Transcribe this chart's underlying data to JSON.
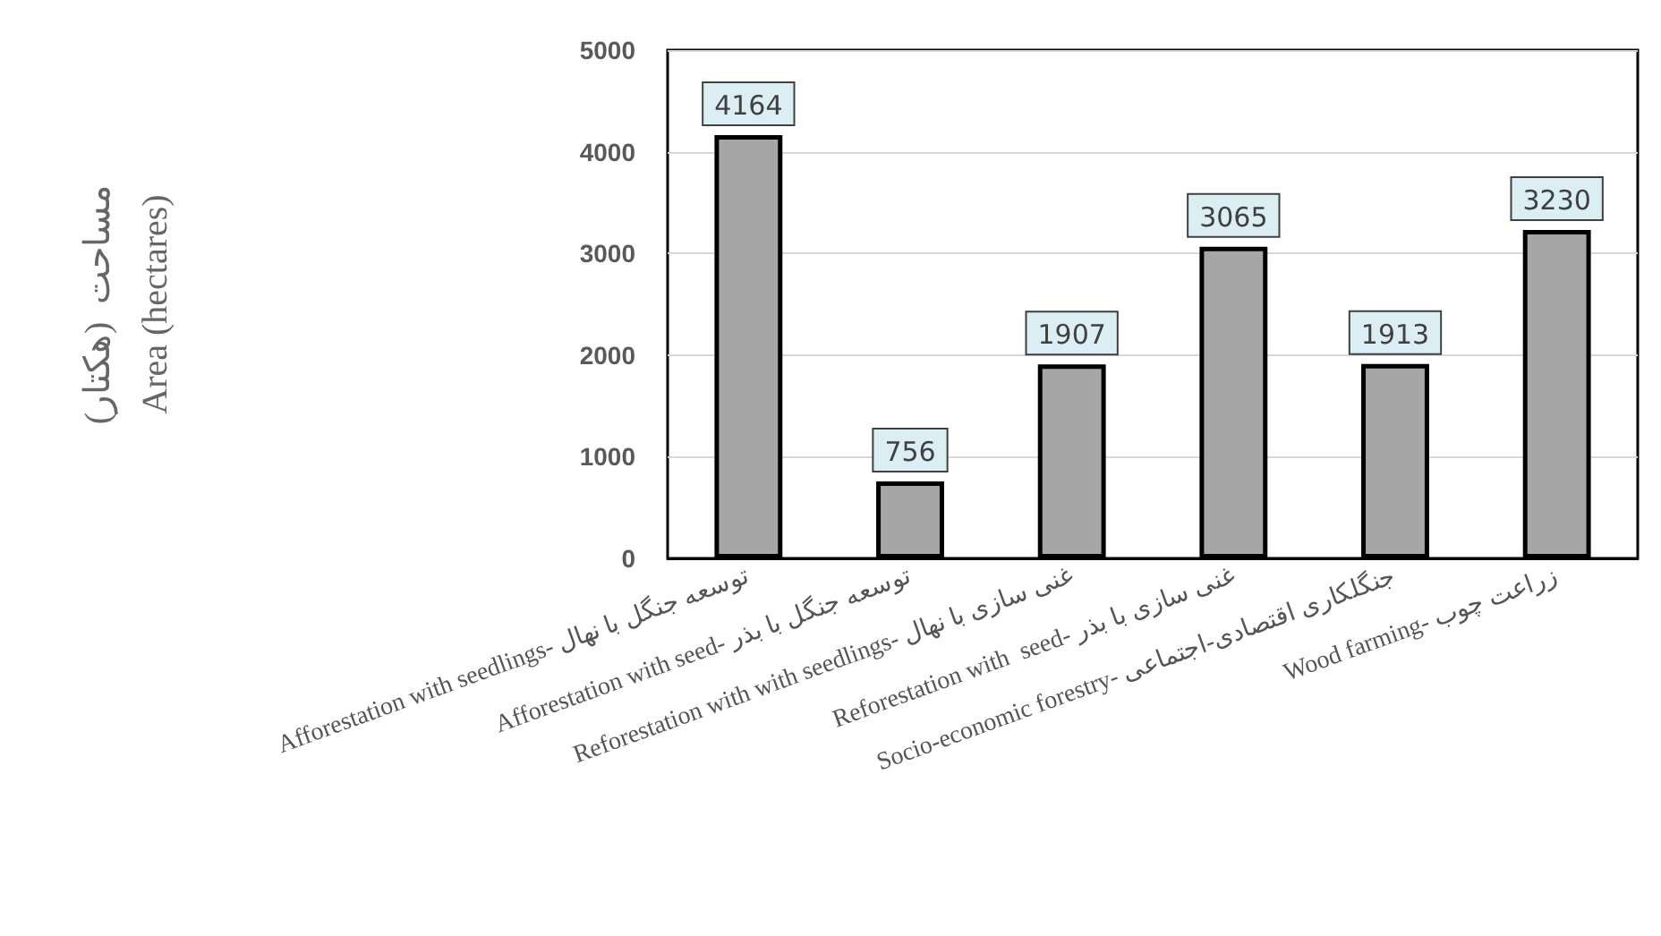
{
  "chart_data": {
    "type": "bar",
    "ylabel": "مساحت  (هکتار)\nArea (hectares)",
    "categories": [
      "Afforestation with seedlings- توسعه جنگل با نهال",
      "Afforestation with seed- توسعه جنگل با بذر",
      "Reforestation with with seedlings- غنی سازی با نهال",
      "Reforestation with  seed- غنی سازی با بذر",
      "Socio-economic forestry- جنگلکاری اقتصادی-اجتماعی",
      "Wood farming- زراعت چوب"
    ],
    "values": [
      4164,
      756,
      1907,
      3065,
      1913,
      3230
    ],
    "color": "#a6a6a6",
    "ylim": [
      0,
      5000
    ],
    "yticks": [
      0,
      1000,
      2000,
      3000,
      4000,
      5000
    ],
    "grid": "y",
    "data_labels": true
  }
}
